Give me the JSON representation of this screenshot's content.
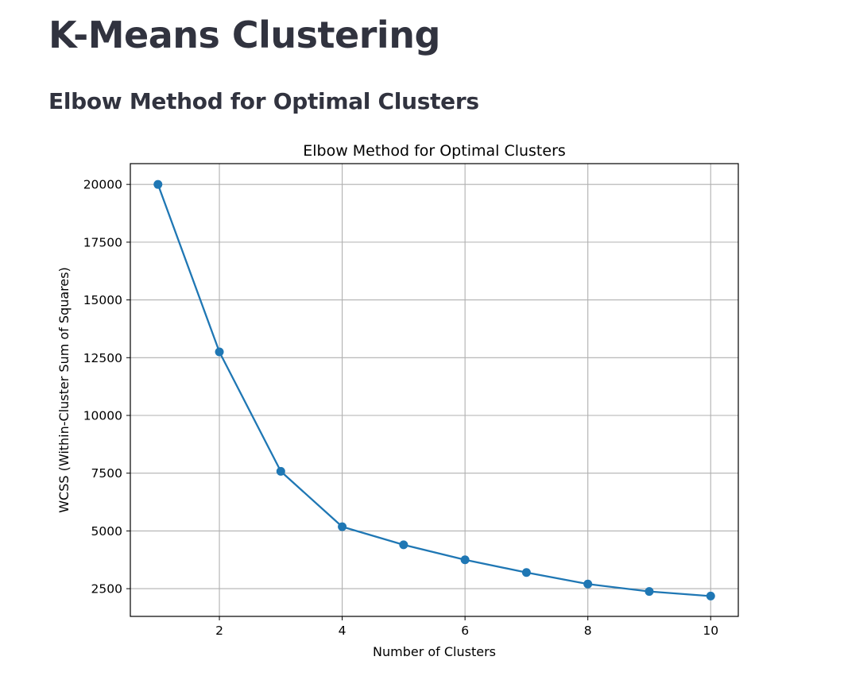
{
  "page": {
    "title": "K-Means Clustering",
    "subheader": "Elbow Method for Optimal Clusters"
  },
  "chart_data": {
    "type": "line",
    "title": "Elbow Method for Optimal Clusters",
    "xlabel": "Number of Clusters",
    "ylabel": "WCSS (Within-Cluster Sum of Squares)",
    "x": [
      1,
      2,
      3,
      4,
      5,
      6,
      7,
      8,
      9,
      10
    ],
    "series": [
      {
        "values": [
          20000,
          12750,
          7580,
          5180,
          4400,
          3750,
          3200,
          2700,
          2380,
          2180
        ],
        "color": "#1f77b4",
        "marker": "circle"
      }
    ],
    "xlim": [
      0.55,
      10.45
    ],
    "ylim": [
      1300,
      20900
    ],
    "xticks": [
      2,
      4,
      6,
      8,
      10
    ],
    "yticks": [
      2500,
      5000,
      7500,
      10000,
      12500,
      15000,
      17500,
      20000
    ],
    "grid": true
  }
}
